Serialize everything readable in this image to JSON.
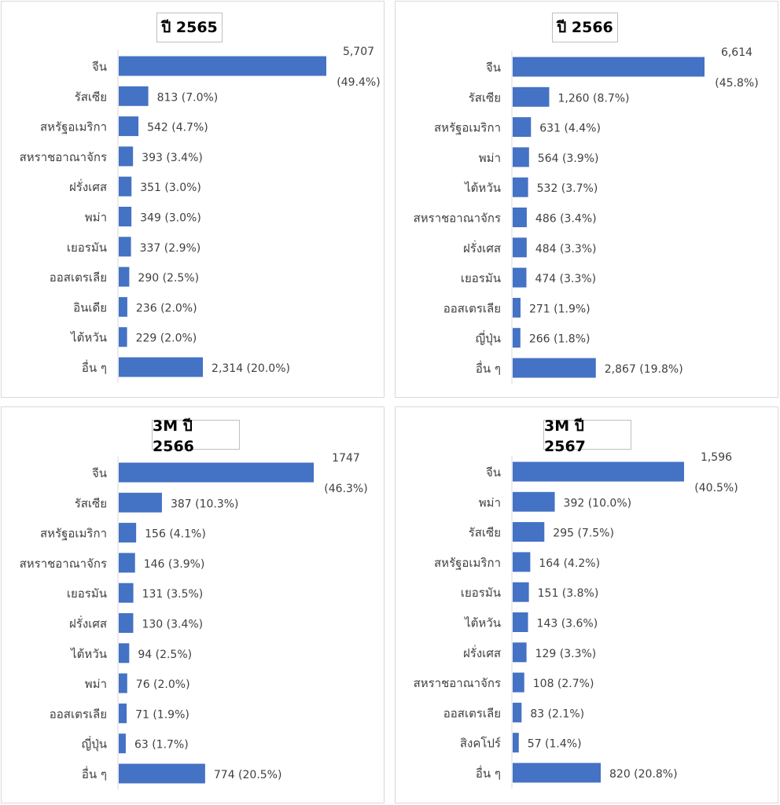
{
  "chart_data": [
    {
      "type": "bar",
      "orientation": "horizontal",
      "title": "ปี 2565",
      "categories": [
        "จีน",
        "รัสเซีย",
        "สหรัฐอเมริกา",
        "สหราชอาณาจักร",
        "ฝรั่งเศส",
        "พม่า",
        "เยอรมัน",
        "ออสเตรเลีย",
        "อินเดีย",
        "ไต้หวัน",
        "อื่น ๆ"
      ],
      "values": [
        5707,
        813,
        542,
        393,
        351,
        349,
        337,
        290,
        236,
        229,
        2314
      ],
      "labels": [
        "5,707|(49.4%)",
        "813 (7.0%)",
        "542 (4.7%)",
        "393 (3.4%)",
        "351 (3.0%)",
        "349 (3.0%)",
        "337 (2.9%)",
        "290 (2.5%)",
        "236 (2.0%)",
        "229 (2.0%)",
        "2,314 (20.0%)"
      ],
      "color": "#4472c4"
    },
    {
      "type": "bar",
      "orientation": "horizontal",
      "title": "ปี 2566",
      "categories": [
        "จีน",
        "รัสเซีย",
        "สหรัฐอเมริกา",
        "พม่า",
        "ไต้หวัน",
        "สหราชอาณาจักร",
        "ฝรั่งเศส",
        "เยอรมัน",
        "ออสเตรเลีย",
        "ญี่ปุ่น",
        "อื่น ๆ"
      ],
      "values": [
        6614,
        1260,
        631,
        564,
        532,
        486,
        484,
        474,
        271,
        266,
        2867
      ],
      "labels": [
        "6,614|(45.8%)",
        "1,260 (8.7%)",
        "631 (4.4%)",
        "564 (3.9%)",
        "532 (3.7%)",
        "486 (3.4%)",
        "484 (3.3%)",
        "474 (3.3%)",
        "271 (1.9%)",
        "266 (1.8%)",
        "2,867 (19.8%)"
      ],
      "color": "#4472c4"
    },
    {
      "type": "bar",
      "orientation": "horizontal",
      "title": "3M ปี 2566",
      "categories": [
        "จีน",
        "รัสเซีย",
        "สหรัฐอเมริกา",
        "สหราชอาณาจักร",
        "เยอรมัน",
        "ฝรั่งเศส",
        "ไต้หวัน",
        "พม่า",
        "ออสเตรเลีย",
        "ญี่ปุ่น",
        "อื่น ๆ"
      ],
      "values": [
        1747,
        387,
        156,
        146,
        131,
        130,
        94,
        76,
        71,
        63,
        774
      ],
      "labels": [
        "1747|(46.3%)",
        "387 (10.3%)",
        "156 (4.1%)",
        "146 (3.9%)",
        "131 (3.5%)",
        "130 (3.4%)",
        "94 (2.5%)",
        "76 (2.0%)",
        "71 (1.9%)",
        "63 (1.7%)",
        "774 (20.5%)"
      ],
      "color": "#4472c4"
    },
    {
      "type": "bar",
      "orientation": "horizontal",
      "title": "3M ปี 2567",
      "categories": [
        "จีน",
        "พม่า",
        "รัสเซีย",
        "สหรัฐอเมริกา",
        "เยอรมัน",
        "ไต้หวัน",
        "ฝรั่งเศส",
        "สหราชอาณาจักร",
        "ออสเตรเลีย",
        "สิงคโปร์",
        "อื่น ๆ"
      ],
      "values": [
        1596,
        392,
        295,
        164,
        151,
        143,
        129,
        108,
        83,
        57,
        820
      ],
      "labels": [
        "1,596|(40.5%)",
        "392 (10.0%)",
        "295 (7.5%)",
        "164 (4.2%)",
        "151 (3.8%)",
        "143 (3.6%)",
        "129 (3.3%)",
        "108 (2.7%)",
        "83 (2.1%)",
        "57 (1.4%)",
        "820 (20.8%)"
      ],
      "color": "#4472c4"
    }
  ]
}
